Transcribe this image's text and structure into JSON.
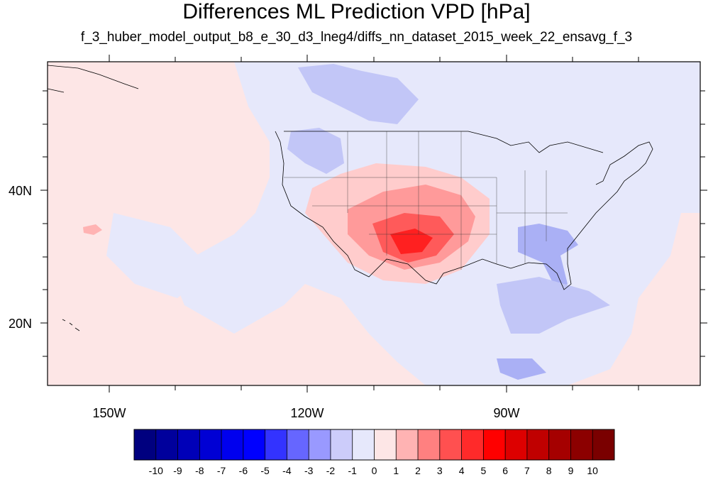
{
  "title": "Differences ML Prediction VPD [hPa]",
  "subtitle": "f_3_huber_model_output_b8_e_30_d3_lneg4/diffs_nn_dataset_2015_week_22_ensavg_f_3",
  "map": {
    "lat_labels": [
      "40N",
      "20N"
    ],
    "lon_labels": [
      "150W",
      "120W",
      "90W"
    ],
    "ocean_base_color": "#fde6e6",
    "land_base_color": "#e6e8fb"
  },
  "colorbar": {
    "labels": [
      "-10",
      "-9",
      "-8",
      "-7",
      "-6",
      "-5",
      "-4",
      "-3",
      "-2",
      "-1",
      "0",
      "1",
      "2",
      "3",
      "4",
      "5",
      "6",
      "7",
      "8",
      "9",
      "10"
    ],
    "colors": [
      "#00007f",
      "#00009c",
      "#0000b8",
      "#0000d4",
      "#0000ee",
      "#0000ff",
      "#3333ff",
      "#6666ff",
      "#9999ff",
      "#ccccfa",
      "#e6e8fb",
      "#fde6e6",
      "#ffb3b3",
      "#ff8080",
      "#ff5050",
      "#ff2a2a",
      "#ff0000",
      "#dd0000",
      "#c00000",
      "#a50000",
      "#8c0000",
      "#7a0000"
    ]
  }
}
